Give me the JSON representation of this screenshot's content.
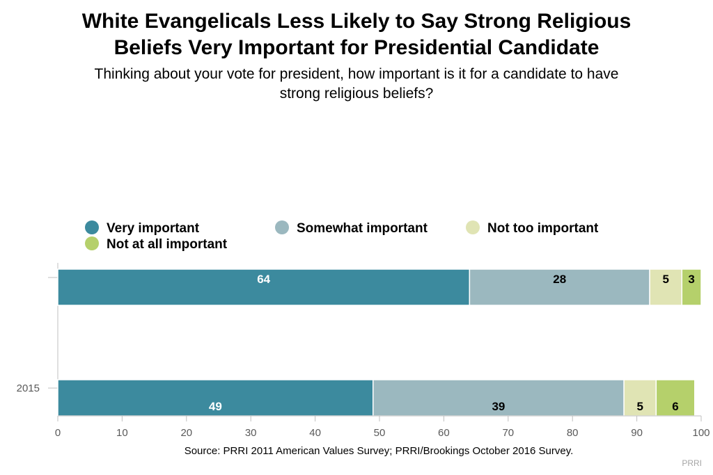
{
  "title_line1": "White Evangelicals Less Likely to Say Strong Religious",
  "title_line2": "Beliefs Very Important for Presidential Candidate",
  "subtitle_line1": "Thinking about your vote for president, how important is it for a candidate to have",
  "subtitle_line2": "strong religious beliefs?",
  "source": "Source: PRRI 2011 American Values Survey; PRRI/Brookings October 2016 Survey.",
  "credit": "PRRI",
  "chart_data": {
    "type": "bar",
    "orientation": "horizontal",
    "stacked": true,
    "categories": [
      "",
      "2015"
    ],
    "series": [
      {
        "name": "Very important",
        "color": "#3c8a9e",
        "label_color": "#ffffff",
        "values": [
          64,
          49
        ]
      },
      {
        "name": "Somewhat important",
        "color": "#9bb8bf",
        "label_color": "#000000",
        "values": [
          28,
          39
        ]
      },
      {
        "name": "Not too important",
        "color": "#e0e4b4",
        "label_color": "#000000",
        "values": [
          5,
          5
        ]
      },
      {
        "name": "Not at all important",
        "color": "#b5d06b",
        "label_color": "#000000",
        "values": [
          3,
          6
        ]
      }
    ],
    "xlim": [
      0,
      100
    ],
    "xticks": [
      0,
      10,
      20,
      30,
      40,
      50,
      60,
      70,
      80,
      90,
      100
    ],
    "legend_position": "top",
    "grid": false
  }
}
